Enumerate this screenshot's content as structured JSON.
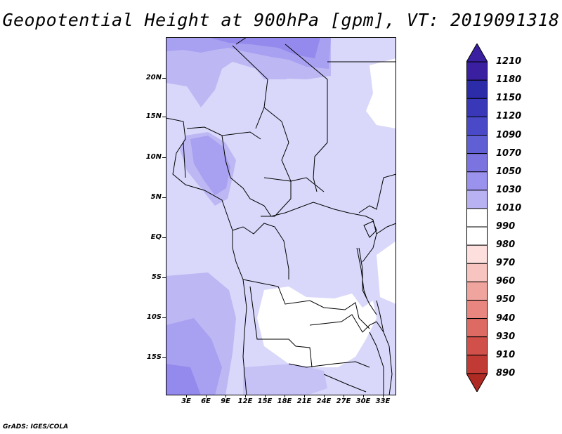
{
  "title": "Geopotential Height at 900hPa [gpm], VT: 2019091318",
  "footer": "GrADS: IGES/COLA",
  "lat_labels": [
    "20N",
    "15N",
    "10N",
    "5N",
    "EQ",
    "5S",
    "10S",
    "15S"
  ],
  "lon_labels": [
    "3E",
    "6E",
    "9E",
    "12E",
    "15E",
    "18E",
    "21E",
    "24E",
    "27E",
    "30E",
    "33E"
  ],
  "colorbar": {
    "labels": [
      "1210",
      "1180",
      "1150",
      "1120",
      "1090",
      "1070",
      "1050",
      "1030",
      "1010",
      "990",
      "980",
      "970",
      "960",
      "950",
      "940",
      "930",
      "910",
      "890"
    ],
    "colors": [
      "#3a1fa0",
      "#2c2ca8",
      "#3838b8",
      "#4a4ac8",
      "#6060d4",
      "#7b74e0",
      "#9a92ec",
      "#b8b2f2",
      "#d8d8fa",
      "#ffffff",
      "#fde0de",
      "#f8c4bf",
      "#f0a49e",
      "#e8867f",
      "#dd6b63",
      "#d2504a",
      "#c23a34",
      "#b02a24"
    ]
  },
  "map": {
    "colors": {
      "background": "#d9d8fa",
      "level_1030": "#bdb8f4",
      "level_1050": "#a8a0f0",
      "level_1070": "#9489ec",
      "low": "#ffffff",
      "border": "#000000"
    }
  }
}
